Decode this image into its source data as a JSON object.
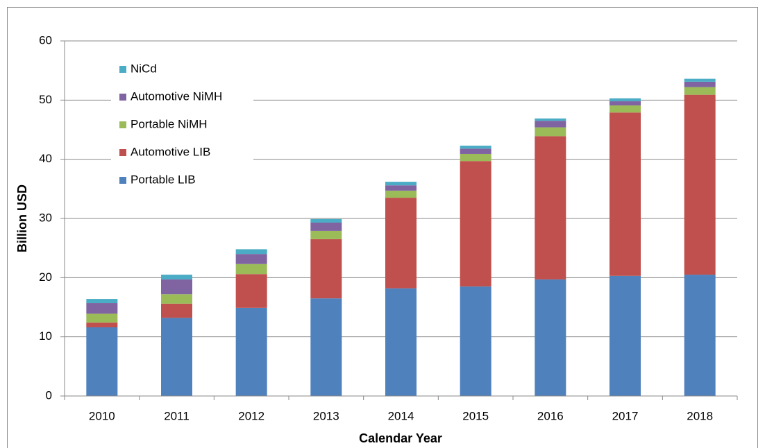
{
  "chart_data": {
    "type": "stacked-bar",
    "categories": [
      "2010",
      "2011",
      "2012",
      "2013",
      "2014",
      "2015",
      "2016",
      "2017",
      "2018"
    ],
    "series": [
      {
        "name": "Portable LIB",
        "color": "#4f81bd",
        "values": [
          11.6,
          13.2,
          14.9,
          16.5,
          18.2,
          18.5,
          19.7,
          20.3,
          20.5
        ]
      },
      {
        "name": "Automotive LIB",
        "color": "#c0504d",
        "values": [
          0.8,
          2.4,
          5.7,
          10.0,
          15.3,
          21.2,
          24.2,
          27.6,
          30.4
        ]
      },
      {
        "name": "Portable NiMH",
        "color": "#9bbb59",
        "values": [
          1.5,
          1.6,
          1.7,
          1.4,
          1.2,
          1.2,
          1.5,
          1.2,
          1.3
        ]
      },
      {
        "name": "Automotive NiMH",
        "color": "#8064a2",
        "values": [
          1.8,
          2.5,
          1.7,
          1.4,
          0.9,
          0.9,
          1.1,
          0.7,
          0.9
        ]
      },
      {
        "name": "NiCd",
        "color": "#4bacc6",
        "values": [
          0.7,
          0.8,
          0.8,
          0.6,
          0.6,
          0.5,
          0.4,
          0.5,
          0.5
        ]
      }
    ],
    "x_label": "Calendar Year",
    "y_label": "Billion USD",
    "ylim": [
      0,
      60
    ],
    "yticks": [
      0,
      10,
      20,
      30,
      40,
      50,
      60
    ],
    "grid": true,
    "legend": "upper-left"
  }
}
